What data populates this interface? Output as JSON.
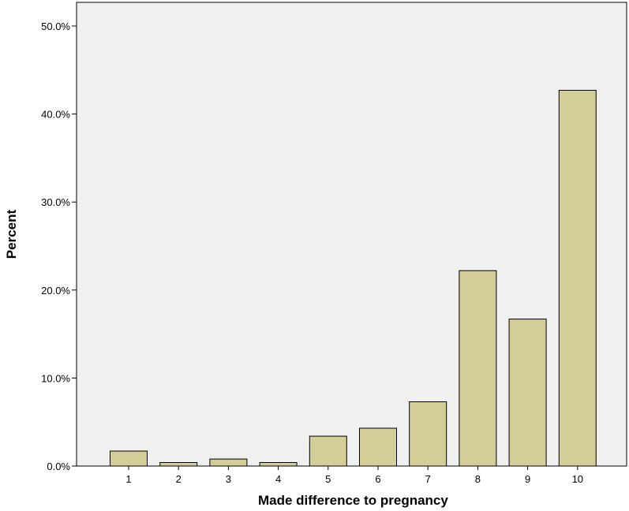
{
  "chart_data": {
    "type": "bar",
    "title": "",
    "xlabel": "Made difference to pregnancy",
    "ylabel": "Percent",
    "categories": [
      "1",
      "2",
      "3",
      "4",
      "5",
      "6",
      "7",
      "8",
      "9",
      "10"
    ],
    "values": [
      1.7,
      0.4,
      0.8,
      0.4,
      3.4,
      4.3,
      7.3,
      22.2,
      16.7,
      42.7
    ],
    "ylim": [
      0,
      50
    ],
    "yticks": [
      0,
      10,
      20,
      30,
      40,
      50
    ],
    "ytick_labels": [
      "0.0%",
      "10.0%",
      "20.0%",
      "30.0%",
      "40.0%",
      "50.0%"
    ],
    "grid": false,
    "legend": "none",
    "colors": {
      "plot_background": "#f0f0f0",
      "bar_fill": "#d3ce98",
      "bar_stroke": "#000000",
      "axis": "#000000"
    }
  }
}
